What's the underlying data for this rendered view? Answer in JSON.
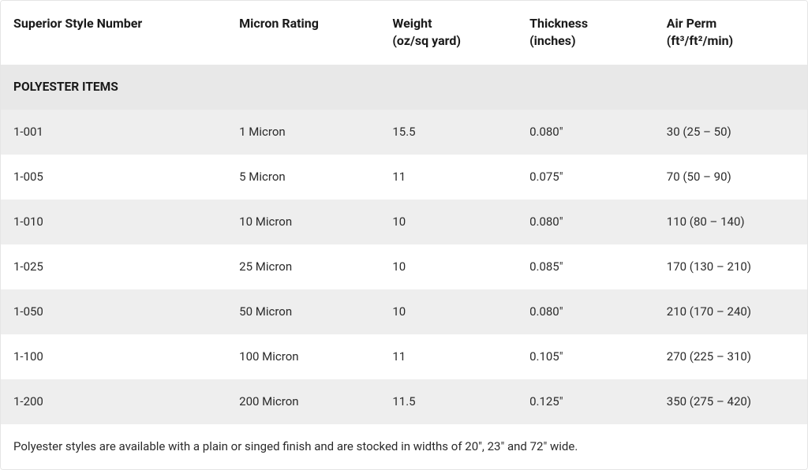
{
  "table": {
    "columns": [
      {
        "header": "Superior Style Number"
      },
      {
        "header": "Micron Rating"
      },
      {
        "header": "Weight\n(oz/sq yard)"
      },
      {
        "header": "Thickness\n(inches)"
      },
      {
        "header": "Air Perm\n(ft³/ft²/min)"
      }
    ],
    "section_title": "POLYESTER ITEMS",
    "rows": [
      {
        "style": "1-001",
        "micron": "1 Micron",
        "weight": "15.5",
        "thickness": "0.080″",
        "airperm": "30 (25 – 50)"
      },
      {
        "style": "1-005",
        "micron": "5 Micron",
        "weight": "11",
        "thickness": "0.075″",
        "airperm": "70 (50 – 90)"
      },
      {
        "style": "1-010",
        "micron": "10 Micron",
        "weight": "10",
        "thickness": "0.080″",
        "airperm": "110 (80 – 140)"
      },
      {
        "style": "1-025",
        "micron": "25 Micron",
        "weight": "10",
        "thickness": "0.085″",
        "airperm": "170 (130 – 210)"
      },
      {
        "style": "1-050",
        "micron": "50 Micron",
        "weight": "10",
        "thickness": "0.080″",
        "airperm": "210 (170 – 240)"
      },
      {
        "style": "1-100",
        "micron": "100 Micron",
        "weight": "11",
        "thickness": "0.105″",
        "airperm": "270 (225 – 310)"
      },
      {
        "style": "1-200",
        "micron": "200 Micron",
        "weight": "11.5",
        "thickness": "0.125″",
        "airperm": "350 (275 – 420)"
      }
    ],
    "footer_note": "Polyester styles are available with a plain or singed finish and are stocked in widths of 20″, 23″ and 72″ wide.",
    "colors": {
      "stripe_bg": "#eeeeee",
      "section_bg": "#e8e8e8",
      "border": "#e5e5e5",
      "text": "#2b2b2b",
      "header_text": "#1a1a1a"
    }
  }
}
